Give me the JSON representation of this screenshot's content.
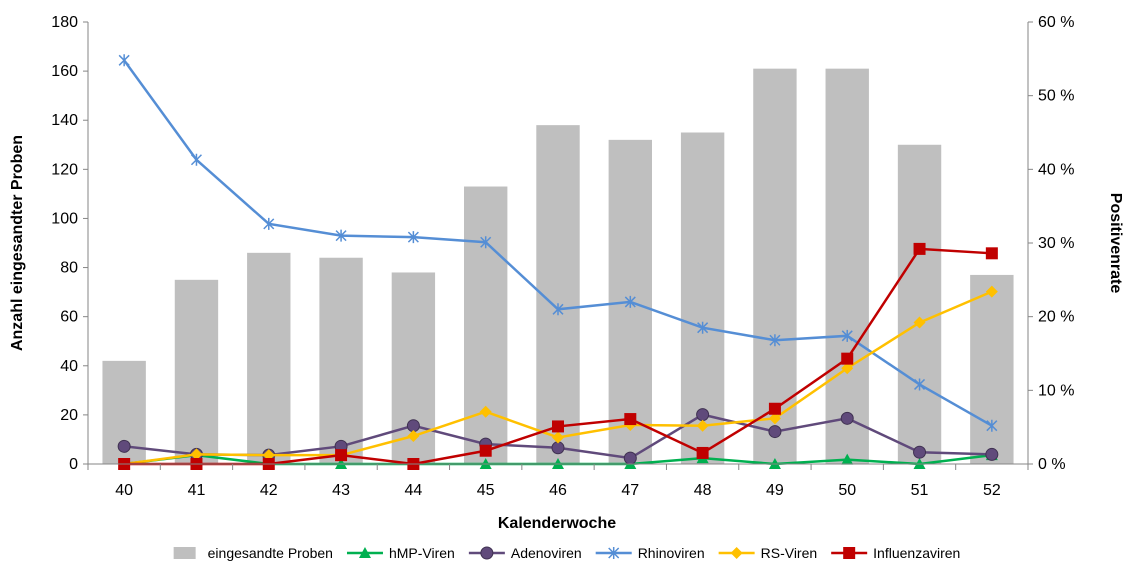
{
  "chart_data": {
    "type": "bar",
    "xlabel": "Kalenderwoche",
    "ylabel": "Anzahl eingesandter Proben",
    "ylabel_right": "Positivenrate",
    "categories": [
      "40",
      "41",
      "42",
      "43",
      "44",
      "45",
      "46",
      "47",
      "48",
      "49",
      "50",
      "51",
      "52"
    ],
    "ylim": [
      0,
      180
    ],
    "yticks": [
      "0",
      "20",
      "40",
      "60",
      "80",
      "100",
      "120",
      "140",
      "160",
      "180"
    ],
    "ylim_right": [
      0,
      60
    ],
    "yticks_right": [
      "0 %",
      "10 %",
      "20 %",
      "30 %",
      "40 %",
      "50 %",
      "60 %"
    ],
    "legend_position": "bottom",
    "bars": {
      "name": "eingesandte Proben",
      "color": "#bfbfbf",
      "values": [
        42,
        75,
        86,
        84,
        78,
        113,
        138,
        132,
        135,
        161,
        161,
        130,
        77
      ]
    },
    "series": [
      {
        "name": "hMP-Viren",
        "axis": "right",
        "color": "#00b050",
        "marker": "triangle",
        "values": [
          0,
          1.2,
          0,
          0,
          0,
          0,
          0,
          0,
          0.8,
          0,
          0.6,
          0,
          1.2
        ]
      },
      {
        "name": "Adenoviren",
        "axis": "right",
        "color": "#604a7b",
        "marker": "circle",
        "values": [
          2.4,
          1.3,
          1.2,
          2.4,
          5.2,
          2.7,
          2.2,
          0.8,
          6.7,
          4.4,
          6.2,
          1.6,
          1.3
        ]
      },
      {
        "name": "Rhinoviren",
        "axis": "right",
        "color": "#558ed5",
        "marker": "star",
        "values": [
          54.8,
          41.3,
          32.6,
          31.0,
          30.8,
          30.1,
          21.0,
          22.0,
          18.5,
          16.8,
          17.4,
          10.8,
          5.2
        ]
      },
      {
        "name": "RS-Viren",
        "axis": "right",
        "color": "#ffc000",
        "marker": "diamond",
        "values": [
          0,
          1.3,
          1.2,
          1.2,
          3.8,
          7.1,
          3.6,
          5.3,
          5.2,
          6.2,
          13.0,
          19.2,
          23.4
        ]
      },
      {
        "name": "Influenzaviren",
        "axis": "right",
        "color": "#c00000",
        "marker": "square",
        "values": [
          0,
          0,
          0,
          1.2,
          0,
          1.8,
          5.1,
          6.1,
          1.5,
          7.5,
          14.3,
          29.2,
          28.6
        ]
      }
    ]
  }
}
